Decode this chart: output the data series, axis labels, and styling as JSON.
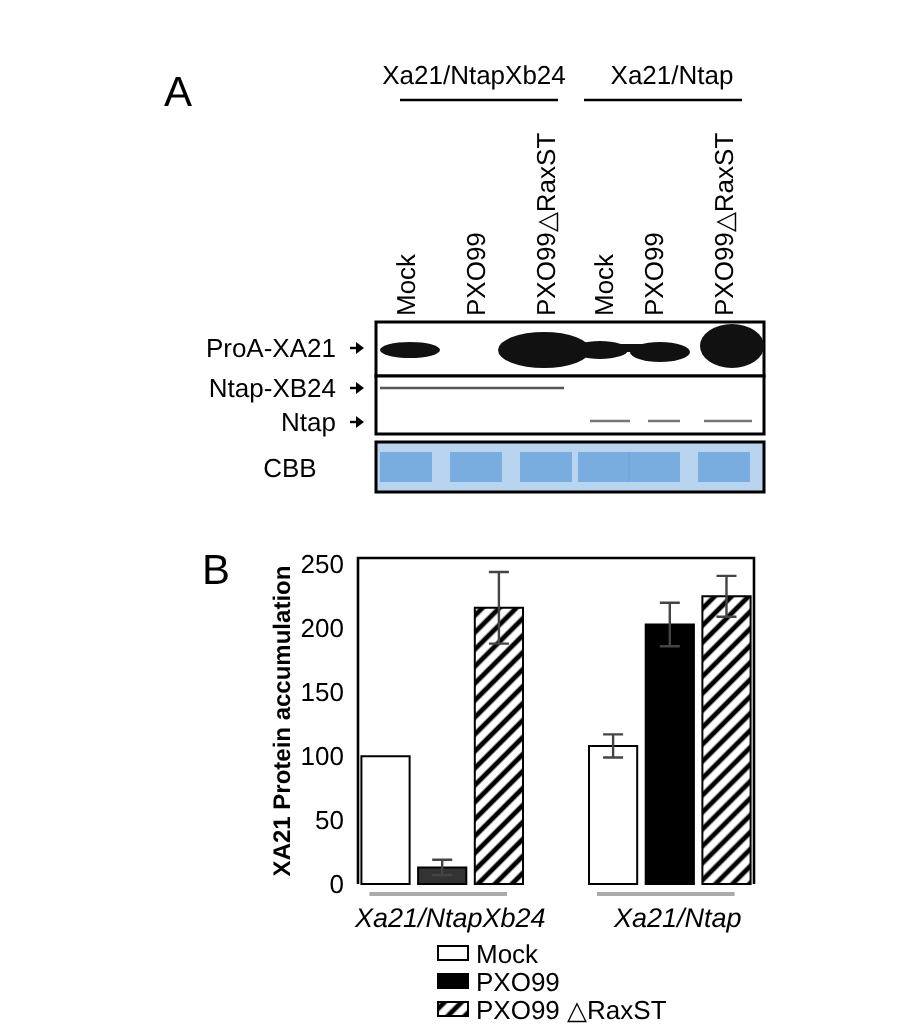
{
  "chart_data": [
    {
      "type": "other",
      "title": "A",
      "annotations": [
        "Xa21/NtapXb24",
        "Xa21/Ntap",
        "Mock",
        "PXO99",
        "PXO99△RaxST",
        "Mock",
        "PXO99",
        "PXO99△RaxST",
        "ProA-XA21",
        "Ntap-XB24",
        "Ntap",
        "CBB"
      ]
    },
    {
      "type": "bar",
      "title": "B",
      "ylabel": "XA21 Protein accumulation",
      "categories": [
        "Xa21/NtapXb24",
        "Xa21/Ntap"
      ],
      "series": [
        {
          "name": "Mock",
          "color": "#ffffff",
          "values": [
            100,
            108
          ],
          "errors": [
            null,
            9
          ]
        },
        {
          "name": "PXO99",
          "colors": [
            "#333333",
            "#000000"
          ],
          "values": [
            13,
            203
          ],
          "errors": [
            6,
            17
          ]
        },
        {
          "name": "PXO99 △RaxST",
          "color": "#000000",
          "values": [
            216,
            225
          ],
          "errors": [
            28,
            16
          ]
        }
      ],
      "ylim": [
        0,
        255
      ],
      "yticks": [
        0,
        50,
        100,
        150,
        200,
        250
      ],
      "legend": "bottom"
    }
  ]
}
